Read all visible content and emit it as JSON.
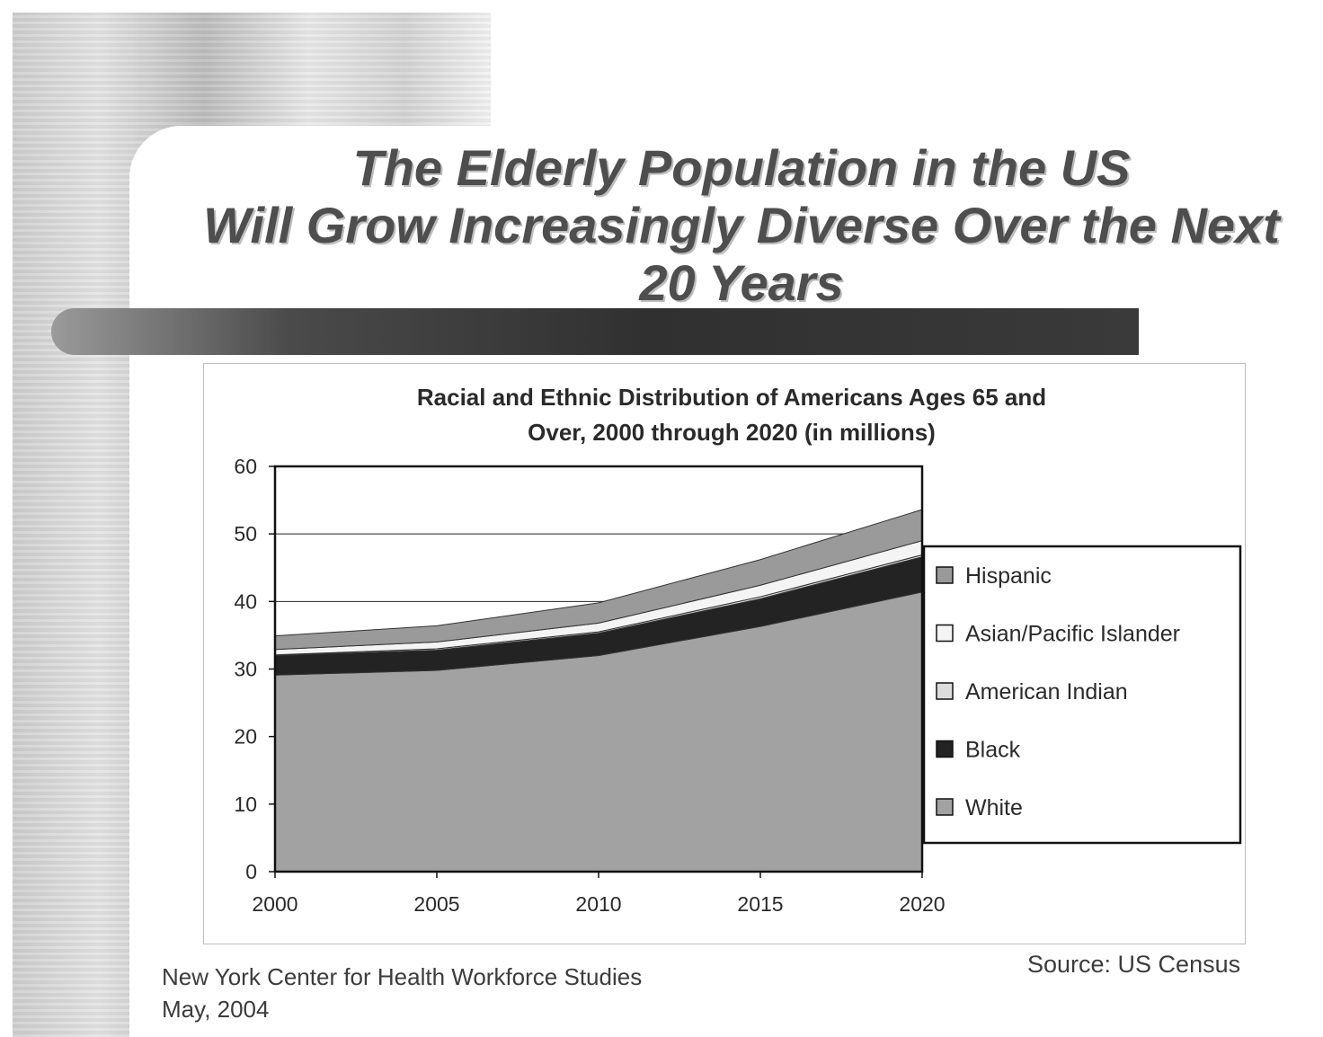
{
  "slide": {
    "title_lines": [
      "The Elderly Population in the US",
      "Will Grow Increasingly Diverse Over the Next",
      "20 Years"
    ],
    "footer_org": "New York Center for Health Workforce Studies",
    "footer_date": "May, 2004",
    "source": "Source: US Census"
  },
  "chart_data": {
    "type": "area",
    "stacked": true,
    "title_lines": [
      "Racial and Ethnic Distribution of Americans Ages 65 and",
      "Over, 2000 through 2020 (in millions)"
    ],
    "x": [
      2000,
      2005,
      2010,
      2015,
      2020
    ],
    "x_tick_labels": [
      "2000",
      "2005",
      "2010",
      "2015",
      "2020"
    ],
    "y_ticks": [
      0,
      10,
      20,
      30,
      40,
      50,
      60
    ],
    "ylim": [
      0,
      60
    ],
    "grid": "horizontal",
    "legend_position": "right",
    "series": [
      {
        "name": "White",
        "values": [
          29.1,
          29.8,
          32.0,
          36.3,
          41.4
        ],
        "color": "#a2a2a2"
      },
      {
        "name": "Black",
        "values": [
          2.9,
          3.0,
          3.3,
          4.1,
          5.2
        ],
        "color": "#232323"
      },
      {
        "name": "American Indian",
        "values": [
          0.1,
          0.2,
          0.2,
          0.3,
          0.3
        ],
        "color": "#dcdcdc"
      },
      {
        "name": "Asian/Pacific Islander",
        "values": [
          0.8,
          1.0,
          1.3,
          1.7,
          2.1
        ],
        "color": "#f4f4f4"
      },
      {
        "name": "Hispanic",
        "values": [
          2.0,
          2.4,
          3.0,
          3.8,
          4.6
        ],
        "color": "#9a9a9a"
      }
    ],
    "legend_order": [
      "Hispanic",
      "Asian/Pacific Islander",
      "American Indian",
      "Black",
      "White"
    ]
  }
}
